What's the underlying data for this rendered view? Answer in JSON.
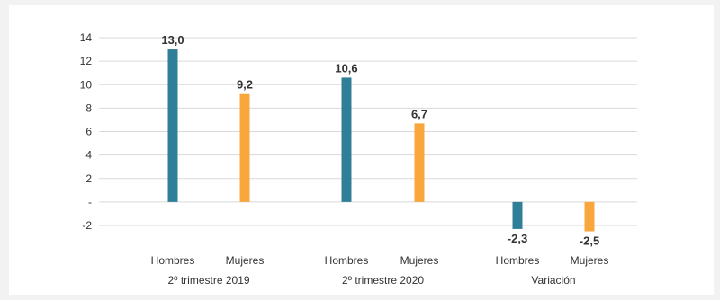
{
  "chart_data": {
    "type": "bar",
    "title": "",
    "xlabel": "",
    "ylabel": "",
    "ylim": [
      -3,
      14.5
    ],
    "yticks": [
      {
        "value": 14,
        "label": "14"
      },
      {
        "value": 12,
        "label": "12"
      },
      {
        "value": 10,
        "label": "10"
      },
      {
        "value": 8,
        "label": "8"
      },
      {
        "value": 6,
        "label": "6"
      },
      {
        "value": 4,
        "label": "4"
      },
      {
        "value": 2,
        "label": "2"
      },
      {
        "value": 0,
        "label": "-"
      },
      {
        "value": -2,
        "label": "-2"
      }
    ],
    "grid": true,
    "groups": [
      {
        "label": "2º trimestre 2019",
        "bars": [
          {
            "category": "Hombres",
            "value": 13.0,
            "value_label": "13,0",
            "color": "#2f7f98"
          },
          {
            "category": "Mujeres",
            "value": 9.2,
            "value_label": "9,2",
            "color": "#f9a63c"
          }
        ]
      },
      {
        "label": "2º trimestre 2020",
        "bars": [
          {
            "category": "Hombres",
            "value": 10.6,
            "value_label": "10,6",
            "color": "#2f7f98"
          },
          {
            "category": "Mujeres",
            "value": 6.7,
            "value_label": "6,7",
            "color": "#f9a63c"
          }
        ]
      },
      {
        "label": "Variación",
        "bars": [
          {
            "category": "Hombres",
            "value": -2.3,
            "value_label": "-2,3",
            "color": "#2f7f98"
          },
          {
            "category": "Mujeres",
            "value": -2.5,
            "value_label": "-2,5",
            "color": "#f9a63c"
          }
        ]
      }
    ]
  }
}
